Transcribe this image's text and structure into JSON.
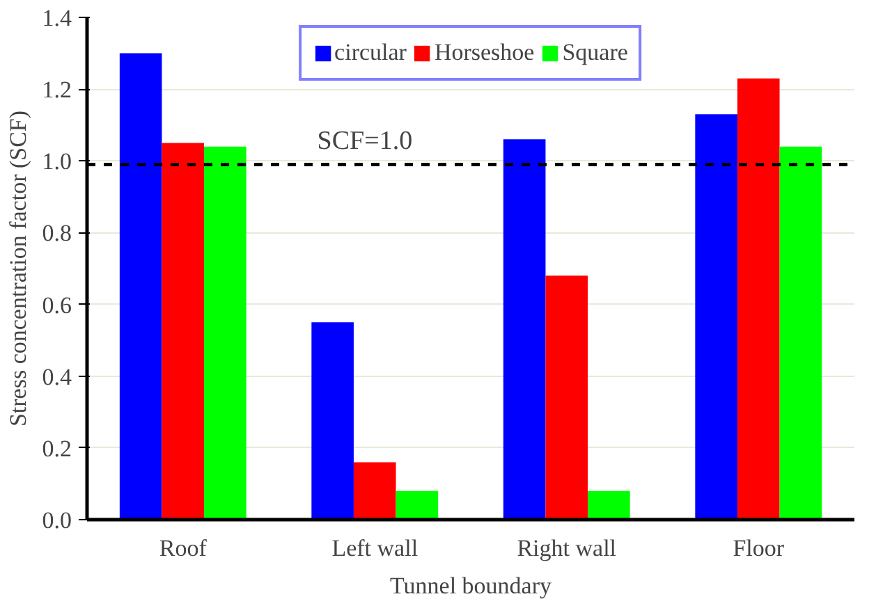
{
  "chart_data": {
    "type": "bar",
    "xlabel": "Tunnel boundary",
    "ylabel": "Stress concentration factor (SCF)",
    "categories": [
      "Roof",
      "Left wall",
      "Right wall",
      "Floor"
    ],
    "series": [
      {
        "name": "circular",
        "color": "#0000ff",
        "values": [
          1.3,
          0.55,
          1.06,
          1.13
        ]
      },
      {
        "name": "Horseshoe",
        "color": "#ff0000",
        "values": [
          1.05,
          0.16,
          0.68,
          1.23
        ]
      },
      {
        "name": "Square",
        "color": "#00ff00",
        "values": [
          1.04,
          0.08,
          0.08,
          1.04
        ]
      }
    ],
    "ylim": [
      0,
      1.4
    ],
    "yticks": [
      {
        "value": 0,
        "label": "0.0"
      },
      {
        "value": 0.2,
        "label": "0.2"
      },
      {
        "value": 0.4,
        "label": "0.4"
      },
      {
        "value": 0.6,
        "label": "0.6"
      },
      {
        "value": 0.8,
        "label": "0.8"
      },
      {
        "value": 1.0,
        "label": "1.0"
      },
      {
        "value": 1.2,
        "label": "1.2"
      },
      {
        "value": 1.4,
        "label": "1.4"
      }
    ],
    "grid": "y",
    "legend": "top",
    "ref_lines": [
      {
        "axis": "y",
        "value": 0.99,
        "label": "SCF=1.0",
        "color": "#000000",
        "line_style": "dashed"
      }
    ]
  }
}
